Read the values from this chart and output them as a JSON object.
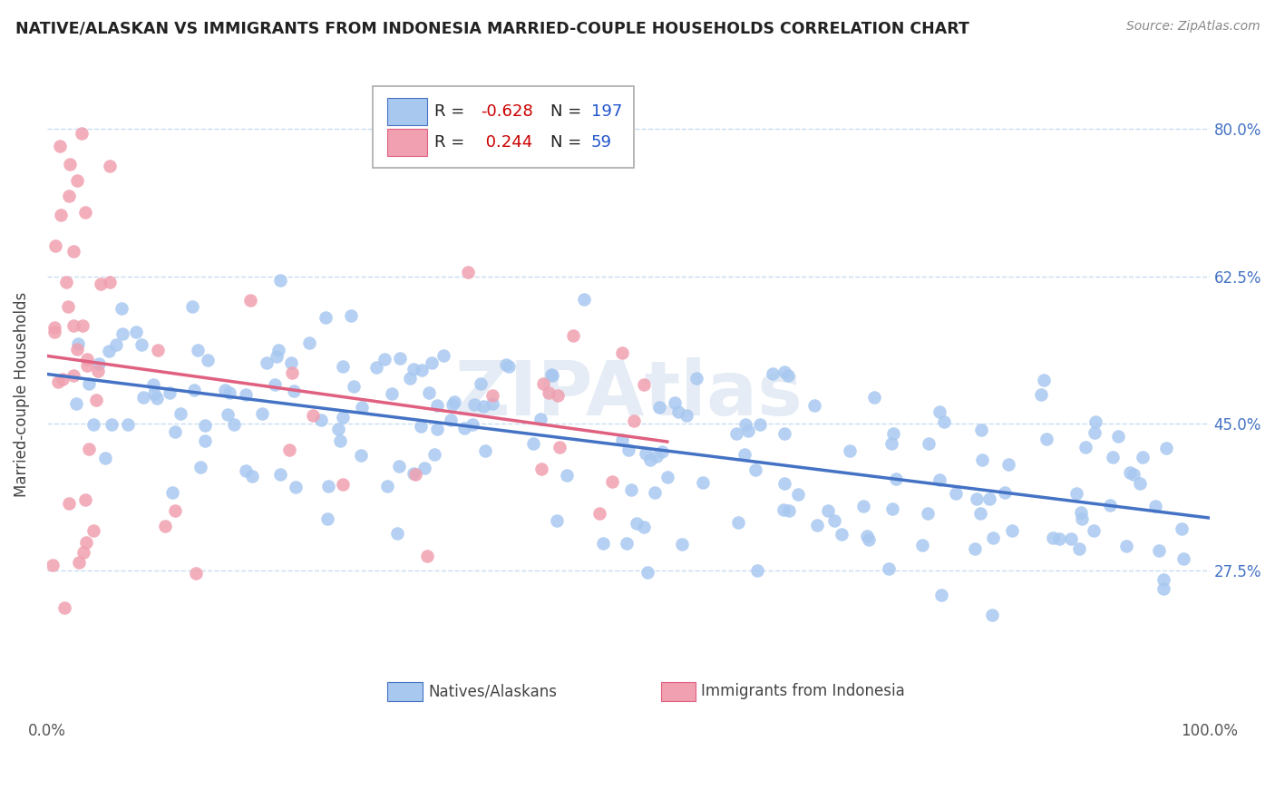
{
  "title": "NATIVE/ALASKAN VS IMMIGRANTS FROM INDONESIA MARRIED-COUPLE HOUSEHOLDS CORRELATION CHART",
  "source": "Source: ZipAtlas.com",
  "ylabel": "Married-couple Households",
  "xmin": 0.0,
  "xmax": 1.0,
  "ymin": 0.1,
  "ymax": 0.87,
  "blue_R": -0.628,
  "blue_N": 197,
  "pink_R": 0.244,
  "pink_N": 59,
  "blue_color": "#a8c8f0",
  "pink_color": "#f0a0b0",
  "blue_line_color": "#4472c4",
  "pink_line_color": "#e06080",
  "legend_label_blue": "Natives/Alaskans",
  "legend_label_pink": "Immigrants from Indonesia",
  "watermark": "ZIPAtlas",
  "grid_color": "#c8ddf0",
  "background_color": "#ffffff",
  "ytick_positions": [
    0.275,
    0.45,
    0.625,
    0.8
  ],
  "ytick_labels": [
    "27.5%",
    "45.0%",
    "62.5%",
    "80.0%"
  ]
}
